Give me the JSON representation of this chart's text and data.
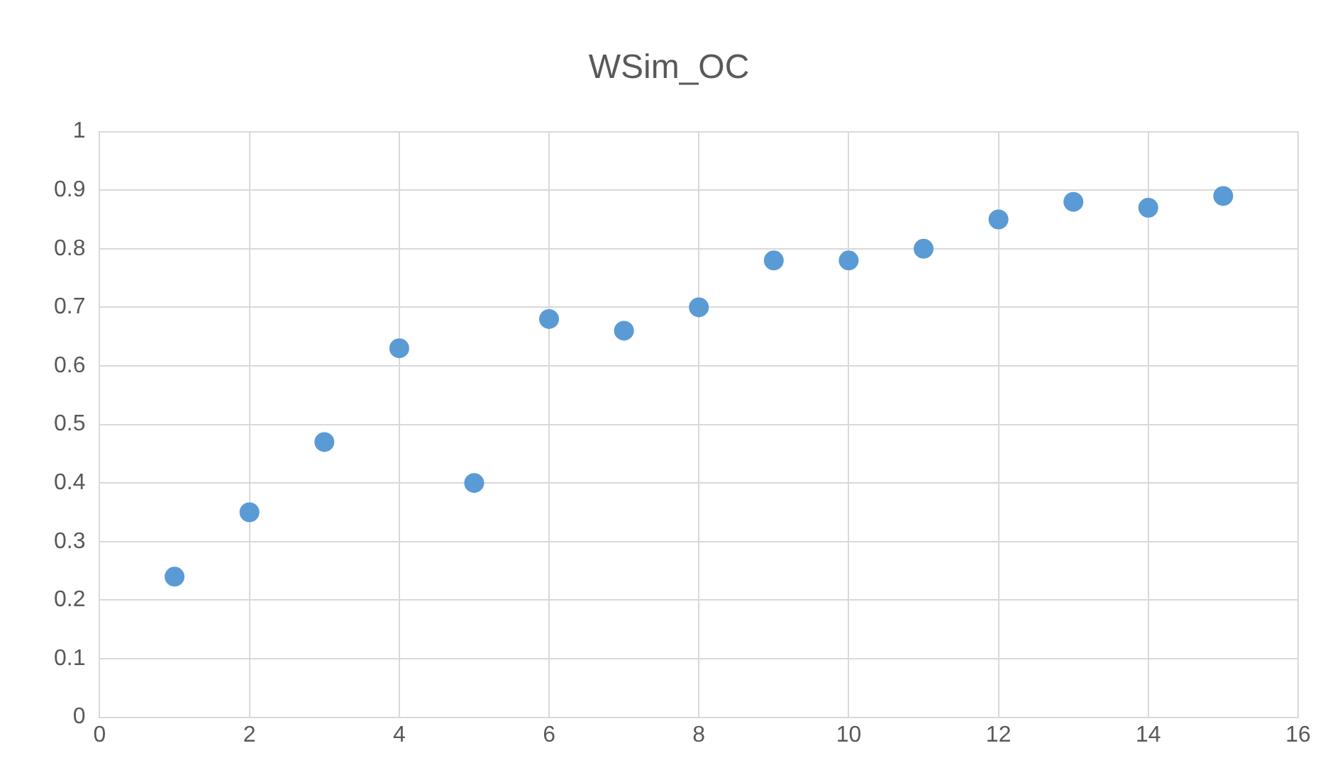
{
  "chart_data": {
    "type": "scatter",
    "title": "WSim_OC",
    "x": [
      1,
      2,
      3,
      4,
      5,
      6,
      7,
      8,
      9,
      10,
      11,
      12,
      13,
      14,
      15
    ],
    "series": [
      {
        "color": "#5b9bd5",
        "values": [
          0.24,
          0.35,
          0.47,
          0.63,
          0.4,
          0.68,
          0.66,
          0.7,
          0.78,
          0.78,
          0.8,
          0.85,
          0.88,
          0.87,
          0.89
        ]
      }
    ],
    "xlim": [
      0,
      16
    ],
    "xticks": [
      0,
      2,
      4,
      6,
      8,
      10,
      12,
      14,
      16
    ],
    "ylim": [
      0,
      1
    ],
    "yticks": [
      0,
      0.1,
      0.2,
      0.3,
      0.4,
      0.5,
      0.6,
      0.7,
      0.8,
      0.9,
      1
    ],
    "grid": true,
    "marker": "circle"
  }
}
